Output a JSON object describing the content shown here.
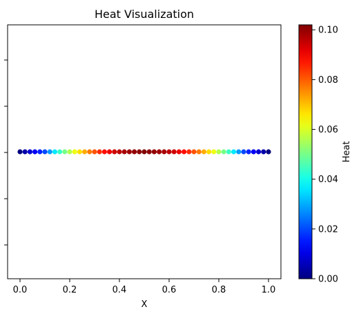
{
  "chart_data": {
    "type": "scatter",
    "title": "Heat Visualization",
    "xlabel": "X",
    "ylabel": "",
    "xlim": [
      -0.05,
      1.05
    ],
    "xticks": [
      0.0,
      0.2,
      0.4,
      0.6,
      0.8,
      1.0
    ],
    "x_tick_labels": [
      "0.0",
      "0.2",
      "0.4",
      "0.6",
      "0.8",
      "1.0"
    ],
    "y_tick_labels_visible": false,
    "y_value": 0,
    "grid": false,
    "colormap": "jet",
    "n_points": 51,
    "heat_formula_note": "",
    "points": [
      {
        "x": 0.0,
        "heat": 0.0
      },
      {
        "x": 0.02,
        "heat": 0.004
      },
      {
        "x": 0.04,
        "heat": 0.008
      },
      {
        "x": 0.06,
        "heat": 0.012
      },
      {
        "x": 0.08,
        "heat": 0.016
      },
      {
        "x": 0.1,
        "heat": 0.02
      },
      {
        "x": 0.12,
        "heat": 0.028
      },
      {
        "x": 0.14,
        "heat": 0.036
      },
      {
        "x": 0.16,
        "heat": 0.044
      },
      {
        "x": 0.18,
        "heat": 0.05
      },
      {
        "x": 0.2,
        "heat": 0.056
      },
      {
        "x": 0.22,
        "heat": 0.062
      },
      {
        "x": 0.24,
        "heat": 0.067
      },
      {
        "x": 0.26,
        "heat": 0.072
      },
      {
        "x": 0.28,
        "heat": 0.077
      },
      {
        "x": 0.3,
        "heat": 0.081
      },
      {
        "x": 0.32,
        "heat": 0.085
      },
      {
        "x": 0.34,
        "heat": 0.088
      },
      {
        "x": 0.36,
        "heat": 0.091
      },
      {
        "x": 0.38,
        "heat": 0.094
      },
      {
        "x": 0.4,
        "heat": 0.096
      },
      {
        "x": 0.42,
        "heat": 0.098
      },
      {
        "x": 0.44,
        "heat": 0.099
      },
      {
        "x": 0.46,
        "heat": 0.1
      },
      {
        "x": 0.48,
        "heat": 0.101
      },
      {
        "x": 0.5,
        "heat": 0.102
      },
      {
        "x": 0.52,
        "heat": 0.101
      },
      {
        "x": 0.54,
        "heat": 0.1
      },
      {
        "x": 0.56,
        "heat": 0.099
      },
      {
        "x": 0.58,
        "heat": 0.098
      },
      {
        "x": 0.6,
        "heat": 0.096
      },
      {
        "x": 0.62,
        "heat": 0.094
      },
      {
        "x": 0.64,
        "heat": 0.091
      },
      {
        "x": 0.66,
        "heat": 0.088
      },
      {
        "x": 0.68,
        "heat": 0.085
      },
      {
        "x": 0.7,
        "heat": 0.081
      },
      {
        "x": 0.72,
        "heat": 0.077
      },
      {
        "x": 0.74,
        "heat": 0.072
      },
      {
        "x": 0.76,
        "heat": 0.067
      },
      {
        "x": 0.78,
        "heat": 0.062
      },
      {
        "x": 0.8,
        "heat": 0.056
      },
      {
        "x": 0.82,
        "heat": 0.05
      },
      {
        "x": 0.84,
        "heat": 0.044
      },
      {
        "x": 0.86,
        "heat": 0.036
      },
      {
        "x": 0.88,
        "heat": 0.028
      },
      {
        "x": 0.9,
        "heat": 0.02
      },
      {
        "x": 0.92,
        "heat": 0.016
      },
      {
        "x": 0.94,
        "heat": 0.012
      },
      {
        "x": 0.96,
        "heat": 0.008
      },
      {
        "x": 0.98,
        "heat": 0.004
      },
      {
        "x": 1.0,
        "heat": 0.0
      }
    ],
    "colorbar": {
      "label": "Heat",
      "vmin": 0.0,
      "vmax": 0.102,
      "ticks": [
        0.0,
        0.02,
        0.04,
        0.06,
        0.08,
        0.1
      ],
      "tick_labels": [
        "0.00",
        "0.02",
        "0.04",
        "0.06",
        "0.08",
        "0.10"
      ]
    }
  }
}
